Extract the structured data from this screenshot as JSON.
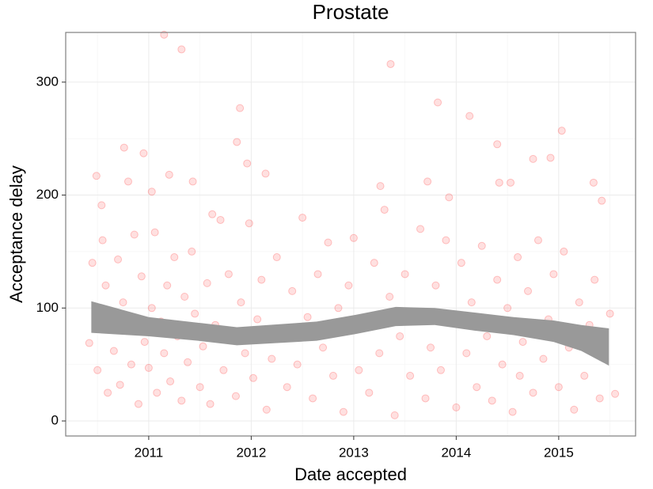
{
  "chart_data": {
    "type": "scatter",
    "title": "Prostate",
    "x_label": "Date accepted",
    "y_label": "Acceptance delay",
    "color": "#ff0000",
    "xlim": [
      2010.19,
      2015.75
    ],
    "ylim": [
      -13.3,
      344
    ],
    "xticks": [
      2011,
      2012,
      2013,
      2014,
      2015
    ],
    "yticks": [
      0,
      100,
      200,
      300
    ],
    "grid": true,
    "x": [
      2010.42,
      2010.45,
      2010.5,
      2010.55,
      2010.58,
      2010.6,
      2010.63,
      2010.66,
      2010.7,
      2010.72,
      2010.75,
      2010.8,
      2010.83,
      2010.86,
      2010.9,
      2010.93,
      2010.96,
      2011.0,
      2011.03,
      2011.06,
      2011.08,
      2011.12,
      2011.15,
      2011.18,
      2011.21,
      2011.25,
      2011.28,
      2011.32,
      2011.35,
      2011.38,
      2011.42,
      2011.45,
      2011.5,
      2011.53,
      2011.57,
      2011.6,
      2011.65,
      2011.7,
      2011.73,
      2011.78,
      2011.82,
      2011.85,
      2011.9,
      2011.94,
      2011.98,
      2012.02,
      2012.06,
      2012.1,
      2012.15,
      2012.2,
      2012.25,
      2012.3,
      2012.35,
      2012.4,
      2012.45,
      2012.5,
      2012.55,
      2012.6,
      2012.65,
      2012.7,
      2012.75,
      2012.8,
      2012.85,
      2012.9,
      2012.95,
      2013.0,
      2013.05,
      2013.1,
      2013.15,
      2013.2,
      2013.25,
      2013.3,
      2013.35,
      2013.4,
      2013.45,
      2013.5,
      2013.55,
      2013.6,
      2013.65,
      2013.7,
      2013.75,
      2013.8,
      2013.85,
      2013.9,
      2013.95,
      2014.0,
      2014.05,
      2014.1,
      2014.15,
      2014.2,
      2014.25,
      2014.3,
      2014.35,
      2014.4,
      2014.45,
      2014.5,
      2014.55,
      2014.6,
      2014.62,
      2014.65,
      2014.7,
      2014.75,
      2014.8,
      2014.85,
      2014.9,
      2014.95,
      2015.0,
      2015.05,
      2015.1,
      2015.15,
      2015.2,
      2015.25,
      2015.3,
      2015.35,
      2015.4,
      2015.45,
      2015.5,
      2015.55,
      2011.15,
      2011.32,
      2013.36,
      2011.89,
      2013.82,
      2014.13,
      2015.03,
      2010.49,
      2010.54,
      2010.76,
      2010.95,
      2010.8,
      2011.2,
      2011.43,
      2011.86,
      2011.96,
      2012.14,
      2011.03,
      2011.62,
      2013.26,
      2013.72,
      2013.93,
      2014.4,
      2014.75,
      2014.92,
      2015.34,
      2015.42,
      2014.53,
      2014.42
    ],
    "values": [
      69,
      140,
      45,
      160,
      120,
      25,
      95,
      62,
      143,
      32,
      105,
      80,
      50,
      165,
      15,
      128,
      70,
      47,
      100,
      167,
      25,
      88,
      60,
      120,
      35,
      145,
      75,
      18,
      110,
      52,
      150,
      95,
      30,
      66,
      122,
      15,
      85,
      178,
      45,
      130,
      72,
      22,
      105,
      60,
      175,
      38,
      90,
      125,
      10,
      55,
      145,
      80,
      30,
      115,
      50,
      180,
      92,
      20,
      130,
      65,
      158,
      40,
      100,
      8,
      120,
      162,
      45,
      85,
      25,
      140,
      60,
      187,
      110,
      5,
      75,
      130,
      40,
      95,
      170,
      20,
      65,
      120,
      45,
      160,
      88,
      12,
      140,
      60,
      105,
      30,
      155,
      75,
      18,
      125,
      50,
      100,
      8,
      145,
      40,
      70,
      115,
      25,
      160,
      55,
      90,
      130,
      30,
      150,
      65,
      10,
      105,
      40,
      85,
      125,
      20,
      55,
      95,
      24,
      342,
      329,
      316,
      277,
      282,
      270,
      257,
      217,
      191,
      242,
      237,
      212,
      218,
      212,
      247,
      228,
      219,
      203,
      183,
      208,
      212,
      198,
      245,
      232,
      233,
      211,
      195,
      211,
      211
    ],
    "band": {
      "color": "#999999",
      "x": [
        2010.44,
        2011.0,
        2011.48,
        2011.86,
        2012.64,
        2013.02,
        2013.41,
        2013.79,
        2014.18,
        2014.56,
        2014.95,
        2015.22,
        2015.49
      ],
      "upper": [
        106,
        92,
        87,
        83,
        88,
        94,
        101,
        100,
        96,
        92,
        89,
        85,
        82
      ],
      "lower": [
        78,
        75,
        71,
        67,
        71,
        77,
        84,
        85,
        80,
        76,
        70,
        62,
        49
      ]
    }
  }
}
